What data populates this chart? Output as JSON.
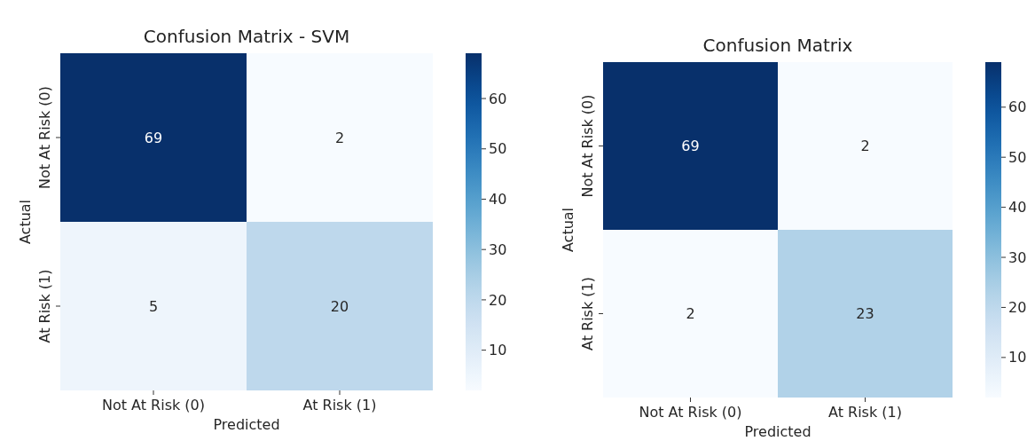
{
  "chart_data": [
    {
      "type": "heatmap",
      "title": "Confusion Matrix - SVM",
      "xlabel": "Predicted",
      "ylabel": "Actual",
      "categories": [
        "Not At Risk (0)",
        "At Risk (1)"
      ],
      "y_categories": [
        "Not At Risk (0)",
        "At Risk (1)"
      ],
      "cells": [
        [
          69,
          2
        ],
        [
          5,
          20
        ]
      ],
      "clim": [
        2,
        69
      ],
      "cticks": [
        10,
        20,
        30,
        40,
        50,
        60
      ],
      "data_labels": true
    },
    {
      "type": "heatmap",
      "title": "Confusion Matrix",
      "xlabel": "Predicted",
      "ylabel": "Actual",
      "categories": [
        "Not At Risk (0)",
        "At Risk (1)"
      ],
      "y_categories": [
        "Not At Risk (0)",
        "At Risk (1)"
      ],
      "cells": [
        [
          69,
          2
        ],
        [
          2,
          23
        ]
      ],
      "clim": [
        2,
        69
      ],
      "cticks": [
        10,
        20,
        30,
        40,
        50,
        60
      ],
      "data_labels": true
    }
  ]
}
